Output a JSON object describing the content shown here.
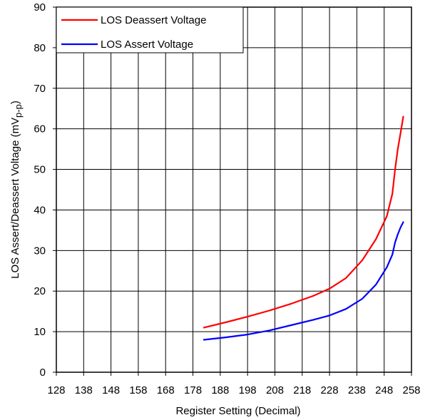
{
  "chart_data": {
    "type": "line",
    "title": "",
    "xlabel": "Register Setting (Decimal)",
    "ylabel_main": "LOS Assert/Deassert Voltage (mV",
    "ylabel_sub": "p-p",
    "ylabel_close": ")",
    "xlim": [
      128,
      258
    ],
    "ylim": [
      0,
      90
    ],
    "xticks": [
      128,
      138,
      148,
      158,
      168,
      178,
      188,
      198,
      208,
      218,
      228,
      238,
      248,
      258
    ],
    "yticks": [
      0,
      10,
      20,
      30,
      40,
      50,
      60,
      70,
      80,
      90
    ],
    "grid": true,
    "legend_position": "top-left",
    "series": [
      {
        "name": "LOS Deassert Voltage",
        "color": "#ff0000",
        "x": [
          182,
          190,
          198,
          206,
          214,
          222,
          228,
          234,
          240,
          245,
          249,
          251,
          252,
          253,
          254,
          255
        ],
        "y": [
          11,
          12.3,
          13.7,
          15.2,
          16.9,
          18.8,
          20.6,
          23.2,
          27.6,
          32.8,
          38.5,
          44,
          50,
          55,
          59,
          63
        ]
      },
      {
        "name": "LOS Assert Voltage",
        "color": "#0000ff",
        "x": [
          182,
          190,
          198,
          206,
          214,
          222,
          228,
          234,
          240,
          245,
          249,
          251,
          252,
          253,
          254,
          255
        ],
        "y": [
          8,
          8.6,
          9.3,
          10.3,
          11.6,
          12.9,
          14,
          15.6,
          18.1,
          21.6,
          25.9,
          29,
          32,
          34,
          35.7,
          37
        ]
      }
    ]
  }
}
